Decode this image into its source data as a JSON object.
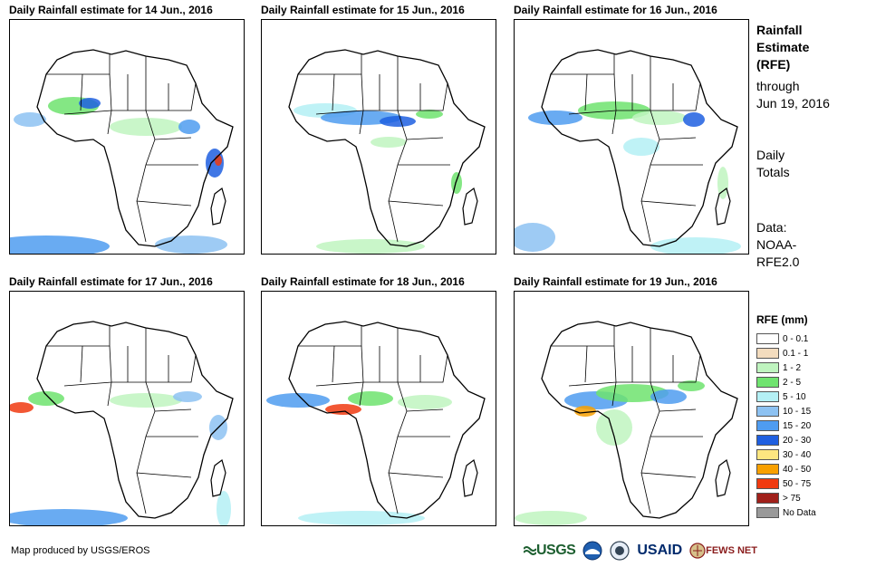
{
  "panels": [
    {
      "title": "Daily Rainfall estimate for 14 Jun., 2016"
    },
    {
      "title": "Daily Rainfall estimate for 15 Jun., 2016"
    },
    {
      "title": "Daily Rainfall estimate for 16 Jun., 2016"
    },
    {
      "title": "Daily Rainfall estimate for 17 Jun., 2016"
    },
    {
      "title": "Daily Rainfall estimate for 18 Jun., 2016"
    },
    {
      "title": "Daily Rainfall estimate for 19 Jun., 2016"
    }
  ],
  "sidebar": {
    "title_line1": "Rainfall",
    "title_line2": "Estimate",
    "title_line3": "(RFE)",
    "through_line1": "through",
    "through_line2": "Jun 19, 2016",
    "daily_line1": "Daily",
    "daily_line2": "Totals",
    "data_line1": "Data:",
    "data_line2": "NOAA-",
    "data_line3": "RFE2.0"
  },
  "legend": {
    "title": "RFE (mm)",
    "items": [
      {
        "label": "0 - 0.1",
        "color": "#ffffff"
      },
      {
        "label": "0.1 - 1",
        "color": "#f3dcbe"
      },
      {
        "label": "1 - 2",
        "color": "#bff4bf"
      },
      {
        "label": "2 - 5",
        "color": "#6fe36f"
      },
      {
        "label": "5 - 10",
        "color": "#b4f0f5"
      },
      {
        "label": "10 - 15",
        "color": "#8dc2f2"
      },
      {
        "label": "15 - 20",
        "color": "#4f9cf0"
      },
      {
        "label": "20 - 30",
        "color": "#1f5fe0"
      },
      {
        "label": "30 - 40",
        "color": "#fde680"
      },
      {
        "label": "40 - 50",
        "color": "#f8a000"
      },
      {
        "label": "50 - 75",
        "color": "#f03a10"
      },
      {
        "label": "> 75",
        "color": "#a0201a"
      },
      {
        "label": "No Data",
        "color": "#999999"
      }
    ]
  },
  "credit": "Map produced by USGS/EROS",
  "logos": {
    "usgs": "USGS",
    "usaid": "USAID",
    "fews": "FEWS NET"
  }
}
